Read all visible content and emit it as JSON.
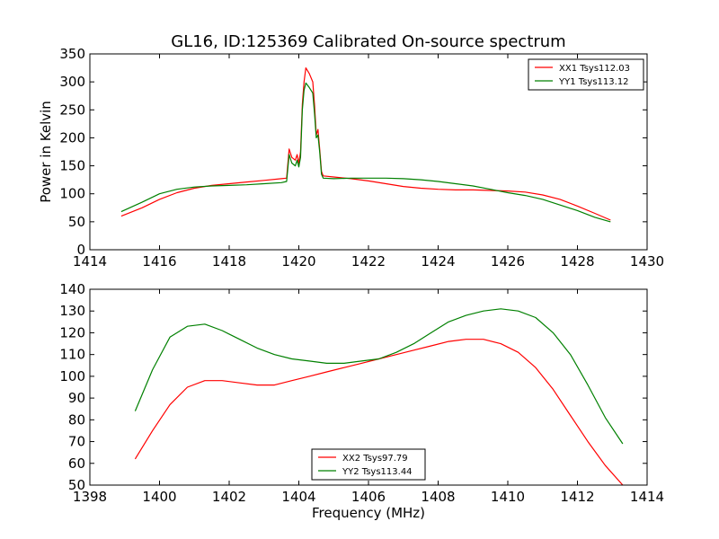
{
  "figure": {
    "title": "GL16, ID:125369 Calibrated On-source spectrum"
  },
  "colors": {
    "xx": "#ff0000",
    "yy": "#008000",
    "axes": "#000000"
  },
  "chart_data": [
    {
      "type": "line",
      "title": "GL16, ID:125369 Calibrated On-source spectrum",
      "xlabel": "",
      "ylabel": "Power in Kelvin",
      "xlim": [
        1414,
        1430
      ],
      "ylim": [
        0,
        350
      ],
      "xticks": [
        1414,
        1416,
        1418,
        1420,
        1422,
        1424,
        1426,
        1428,
        1430
      ],
      "yticks": [
        0,
        50,
        100,
        150,
        200,
        250,
        300,
        350
      ],
      "grid": false,
      "legend_position": "top-right",
      "series": [
        {
          "name": "XX1 Tsys112.03",
          "color": "#ff0000",
          "x": [
            1414.9,
            1415.5,
            1416.0,
            1416.5,
            1417.0,
            1417.5,
            1418.0,
            1418.5,
            1419.0,
            1419.5,
            1419.65,
            1419.72,
            1419.8,
            1419.9,
            1419.95,
            1420.0,
            1420.05,
            1420.1,
            1420.15,
            1420.2,
            1420.3,
            1420.4,
            1420.45,
            1420.5,
            1420.55,
            1420.6,
            1420.65,
            1420.7,
            1421.0,
            1421.5,
            1422.0,
            1422.5,
            1423.0,
            1423.5,
            1424.0,
            1424.5,
            1425.0,
            1425.5,
            1426.0,
            1426.5,
            1427.0,
            1427.5,
            1428.0,
            1428.5,
            1428.95
          ],
          "y": [
            60,
            75,
            90,
            102,
            110,
            115,
            118,
            121,
            124,
            127,
            128,
            180,
            165,
            160,
            170,
            155,
            175,
            260,
            300,
            325,
            315,
            300,
            260,
            205,
            215,
            180,
            140,
            132,
            130,
            127,
            123,
            118,
            113,
            110,
            108,
            107,
            107,
            106,
            105,
            103,
            98,
            90,
            78,
            65,
            53
          ]
        },
        {
          "name": "YY1 Tsys113.12",
          "color": "#008000",
          "x": [
            1414.9,
            1415.5,
            1416.0,
            1416.5,
            1417.0,
            1417.5,
            1418.0,
            1418.5,
            1419.0,
            1419.5,
            1419.65,
            1419.72,
            1419.8,
            1419.9,
            1419.95,
            1420.0,
            1420.05,
            1420.1,
            1420.15,
            1420.2,
            1420.3,
            1420.4,
            1420.45,
            1420.5,
            1420.55,
            1420.6,
            1420.65,
            1420.7,
            1421.0,
            1421.5,
            1422.0,
            1422.5,
            1423.0,
            1423.5,
            1424.0,
            1424.5,
            1425.0,
            1425.5,
            1426.0,
            1426.5,
            1427.0,
            1427.5,
            1428.0,
            1428.5,
            1428.95
          ],
          "y": [
            68,
            85,
            100,
            108,
            112,
            114,
            115,
            116,
            118,
            120,
            122,
            170,
            155,
            150,
            160,
            148,
            165,
            250,
            285,
            298,
            290,
            280,
            245,
            200,
            205,
            175,
            135,
            128,
            127,
            128,
            128,
            128,
            127,
            125,
            122,
            118,
            114,
            108,
            102,
            97,
            90,
            80,
            70,
            58,
            50
          ]
        }
      ]
    },
    {
      "type": "line",
      "title": "",
      "xlabel": "Frequency (MHz)",
      "ylabel": "",
      "xlim": [
        1398,
        1414
      ],
      "ylim": [
        50,
        140
      ],
      "xticks": [
        1398,
        1400,
        1402,
        1404,
        1406,
        1408,
        1410,
        1412,
        1414
      ],
      "yticks": [
        50,
        60,
        70,
        80,
        90,
        100,
        110,
        120,
        130,
        140
      ],
      "grid": false,
      "legend_position": "bottom-center",
      "series": [
        {
          "name": "XX2 Tsys97.79",
          "color": "#ff0000",
          "x": [
            1399.3,
            1399.8,
            1400.3,
            1400.8,
            1401.3,
            1401.8,
            1402.3,
            1402.8,
            1403.3,
            1403.8,
            1404.3,
            1404.8,
            1405.3,
            1405.8,
            1406.3,
            1406.8,
            1407.3,
            1407.8,
            1408.3,
            1408.8,
            1409.3,
            1409.8,
            1410.3,
            1410.8,
            1411.3,
            1411.8,
            1412.3,
            1412.8,
            1413.3
          ],
          "y": [
            62,
            75,
            87,
            95,
            98,
            98,
            97,
            96,
            96,
            98,
            100,
            102,
            104,
            106,
            108,
            110,
            112,
            114,
            116,
            117,
            117,
            115,
            111,
            104,
            94,
            82,
            70,
            59,
            50
          ]
        },
        {
          "name": "YY2 Tsys113.44",
          "color": "#008000",
          "x": [
            1399.3,
            1399.8,
            1400.3,
            1400.8,
            1401.3,
            1401.8,
            1402.3,
            1402.8,
            1403.3,
            1403.8,
            1404.3,
            1404.8,
            1405.3,
            1405.8,
            1406.3,
            1406.8,
            1407.3,
            1407.8,
            1408.3,
            1408.8,
            1409.3,
            1409.8,
            1410.3,
            1410.8,
            1411.3,
            1411.8,
            1412.3,
            1412.8,
            1413.3
          ],
          "y": [
            84,
            103,
            118,
            123,
            124,
            121,
            117,
            113,
            110,
            108,
            107,
            106,
            106,
            107,
            108,
            111,
            115,
            120,
            125,
            128,
            130,
            131,
            130,
            127,
            120,
            110,
            96,
            81,
            69
          ]
        }
      ]
    }
  ]
}
